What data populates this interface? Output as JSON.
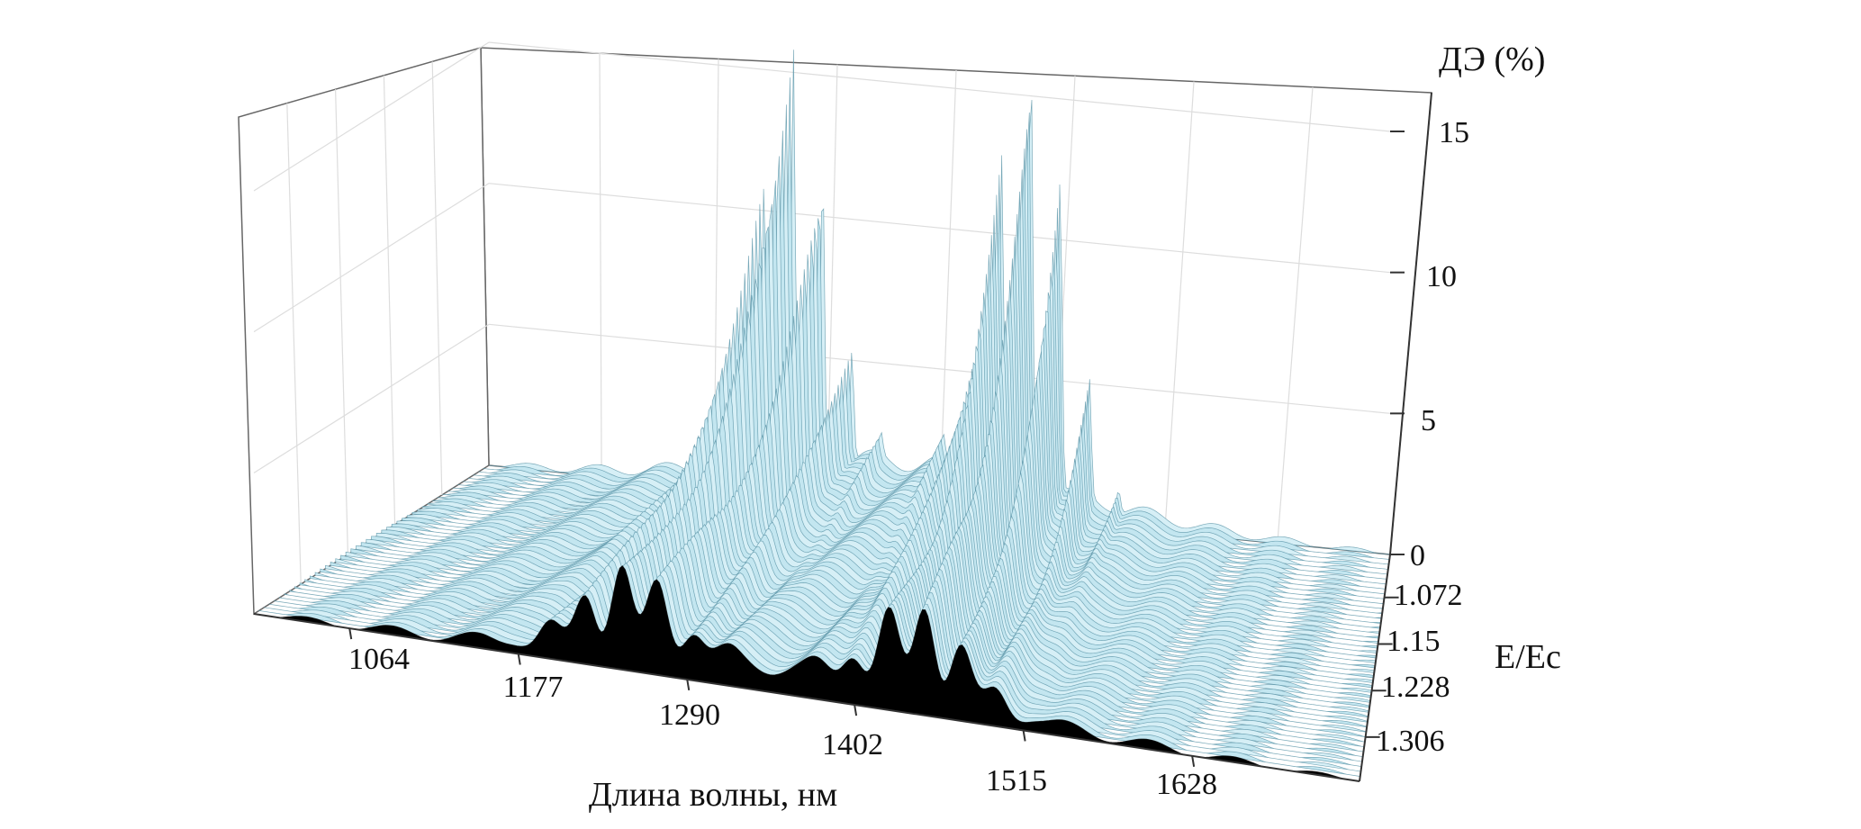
{
  "chart_data": {
    "type": "surface3d",
    "xlabel": "Длина волны, нм",
    "ylabel": "E/Ec",
    "zlabel": "ДЭ (%)",
    "x_ticks": [
      "1064",
      "1177",
      "1290",
      "1402",
      "1515",
      "1628"
    ],
    "y_ticks": [
      "1.072",
      "1.15",
      "1.228",
      "1.306"
    ],
    "z_ticks": [
      "0",
      "5",
      "10",
      "15"
    ],
    "xlim": [
      1000,
      1740
    ],
    "ylim": [
      1.0,
      1.38
    ],
    "zlim": [
      0,
      16
    ],
    "grid": true,
    "peak_groups": [
      {
        "center_nm": 1250,
        "max_efficiency_pct": 14.5,
        "front_efficiency_pct": 3
      },
      {
        "center_nm": 1445,
        "max_efficiency_pct": 15.5,
        "front_efficiency_pct": 3.2
      }
    ],
    "colors": {
      "surface": "#c3e6f0",
      "surface_edge": "#5b95a8",
      "front_profile": "#000000",
      "grid": "#dddddd",
      "axis": "#333333"
    }
  }
}
